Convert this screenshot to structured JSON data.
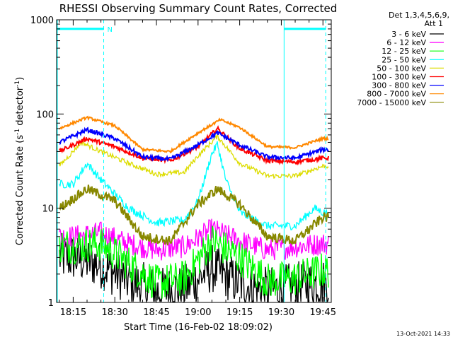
{
  "chart_data": {
    "type": "line",
    "title": "RHESSI Observing Summary Count Rates, Corrected",
    "xlabel": "Start Time (16-Feb-02 18:09:02)",
    "ylabel": "Corrected Count Rate (s⁻¹ detector⁻¹)",
    "ylabel_parts": [
      "Corrected Count Rate (s",
      "-1",
      " detector",
      "-1",
      ")"
    ],
    "yscale": "log",
    "ylim": [
      1,
      1000
    ],
    "xlim": [
      "18:09:02",
      "19:48:00"
    ],
    "x_ticks": [
      "18:15",
      "18:30",
      "18:45",
      "19:00",
      "19:15",
      "19:30",
      "19:45"
    ],
    "y_ticks": [
      "1",
      "10",
      "100",
      "1000"
    ],
    "legend_header": [
      "Det 1,3,4,5,6,9,",
      "Att 1"
    ],
    "legend_position": "right",
    "timestamp": "13-Oct-2021 14:33",
    "annotations": {
      "night_marker": "N",
      "cyan_bars": [
        [
          "18:09",
          "18:26"
        ],
        [
          "19:31",
          "19:46"
        ]
      ],
      "dashed_lines": [
        "18:26",
        "19:46"
      ],
      "solid_lines": [
        "18:09",
        "19:31"
      ]
    },
    "series": [
      {
        "name": "3 - 6 keV",
        "color": "#000000",
        "x": [
          "18:15",
          "18:25",
          "18:35",
          "18:45",
          "18:55",
          "19:05",
          "19:15",
          "19:25",
          "19:35",
          "19:45"
        ],
        "y": [
          3,
          2.5,
          1.7,
          1.3,
          1.4,
          2.3,
          1.6,
          1.3,
          1.5,
          1.6
        ]
      },
      {
        "name": "6 - 12 keV",
        "color": "#ff00ff",
        "x": [
          "18:15",
          "18:25",
          "18:35",
          "18:45",
          "18:55",
          "19:05",
          "19:15",
          "19:25",
          "19:35",
          "19:45"
        ],
        "y": [
          5,
          5.5,
          4.2,
          3.6,
          3.9,
          6,
          4.5,
          3.6,
          3.9,
          4.2
        ]
      },
      {
        "name": "12 - 25 keV",
        "color": "#00ff00",
        "x": [
          "18:15",
          "18:25",
          "18:35",
          "18:45",
          "18:55",
          "19:05",
          "19:15",
          "19:25",
          "19:35",
          "19:45"
        ],
        "y": [
          4,
          4.2,
          2.6,
          1.6,
          1.8,
          4.5,
          3,
          1.7,
          1.8,
          2.2
        ]
      },
      {
        "name": "25 - 50 keV",
        "color": "#00ffff",
        "x": [
          "18:15",
          "18:20",
          "18:25",
          "18:35",
          "18:45",
          "18:55",
          "19:00",
          "19:05",
          "19:07",
          "19:10",
          "19:15",
          "19:25",
          "19:35",
          "19:42",
          "19:45"
        ],
        "y": [
          18,
          30,
          20,
          10,
          7,
          7.5,
          12,
          38,
          48,
          20,
          9,
          6.5,
          6.5,
          10,
          9
        ]
      },
      {
        "name": "50 - 100 keV",
        "color": "#dddd00",
        "x": [
          "18:10",
          "18:18",
          "18:25",
          "18:35",
          "18:45",
          "18:55",
          "19:00",
          "19:07",
          "19:15",
          "19:25",
          "19:35",
          "19:45"
        ],
        "y": [
          28,
          50,
          40,
          30,
          23,
          24,
          36,
          58,
          30,
          22,
          22,
          28
        ]
      },
      {
        "name": "100 - 300 keV",
        "color": "#ff0000",
        "x": [
          "18:10",
          "18:20",
          "18:30",
          "18:40",
          "18:50",
          "19:00",
          "19:07",
          "19:15",
          "19:25",
          "19:35",
          "19:45"
        ],
        "y": [
          40,
          55,
          45,
          34,
          32,
          45,
          70,
          43,
          32,
          31,
          34
        ]
      },
      {
        "name": "300 - 800 keV",
        "color": "#0000ff",
        "x": [
          "18:10",
          "18:20",
          "18:30",
          "18:40",
          "18:50",
          "19:00",
          "19:07",
          "19:15",
          "19:25",
          "19:35",
          "19:45"
        ],
        "y": [
          50,
          68,
          55,
          35,
          33,
          47,
          63,
          47,
          35,
          34,
          42
        ]
      },
      {
        "name": "800 - 7000 keV",
        "color": "#ff8800",
        "x": [
          "18:10",
          "18:20",
          "18:30",
          "18:40",
          "18:50",
          "19:00",
          "19:08",
          "19:15",
          "19:25",
          "19:35",
          "19:45"
        ],
        "y": [
          70,
          92,
          75,
          42,
          40,
          63,
          87,
          72,
          45,
          44,
          55
        ]
      },
      {
        "name": "7000 - 15000 keV",
        "color": "#888800",
        "x": [
          "18:10",
          "18:20",
          "18:30",
          "18:40",
          "18:50",
          "19:00",
          "19:07",
          "19:15",
          "19:25",
          "19:35",
          "19:45"
        ],
        "y": [
          10,
          16,
          12,
          5,
          4.5,
          11,
          16,
          11,
          5,
          4.5,
          8
        ]
      }
    ]
  }
}
